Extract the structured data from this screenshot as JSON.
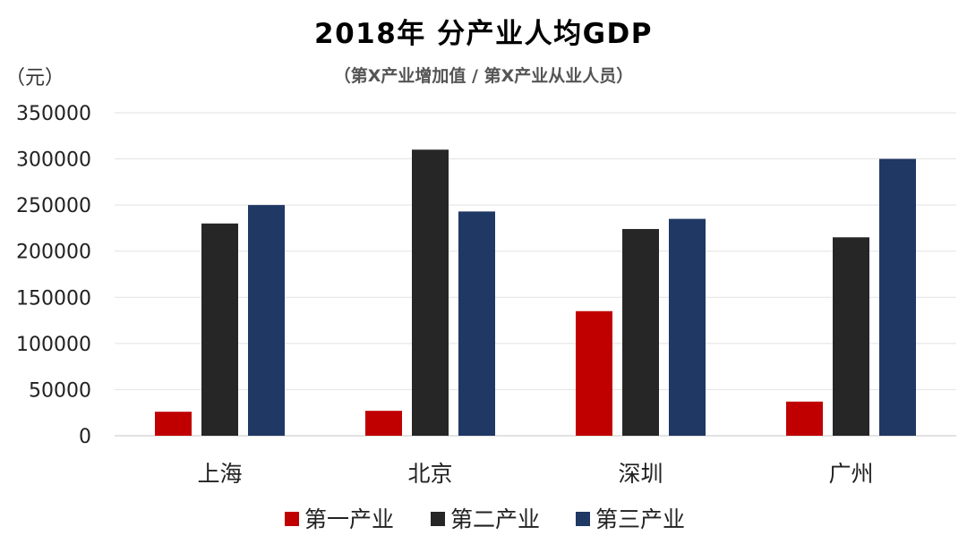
{
  "chart_data": {
    "type": "bar",
    "title": "2018年  分产业人均GDP",
    "subtitle": "（第X产业增加值 / 第X产业从业人员）",
    "ylabel": "（元）",
    "xlabel": "",
    "categories": [
      "上海",
      "北京",
      "深圳",
      "广州"
    ],
    "series": [
      {
        "name": "第一产业",
        "color": "#c00000",
        "values": [
          26000,
          27000,
          135000,
          37000
        ]
      },
      {
        "name": "第二产业",
        "color": "#262626",
        "values": [
          230000,
          310000,
          224000,
          215000
        ]
      },
      {
        "name": "第三产业",
        "color": "#1f3864",
        "values": [
          250000,
          243000,
          235000,
          300000
        ]
      }
    ],
    "ylim": [
      0,
      350000
    ],
    "yticks": [
      0,
      50000,
      100000,
      150000,
      200000,
      250000,
      300000,
      350000
    ],
    "grid": true,
    "legend_position": "bottom"
  }
}
